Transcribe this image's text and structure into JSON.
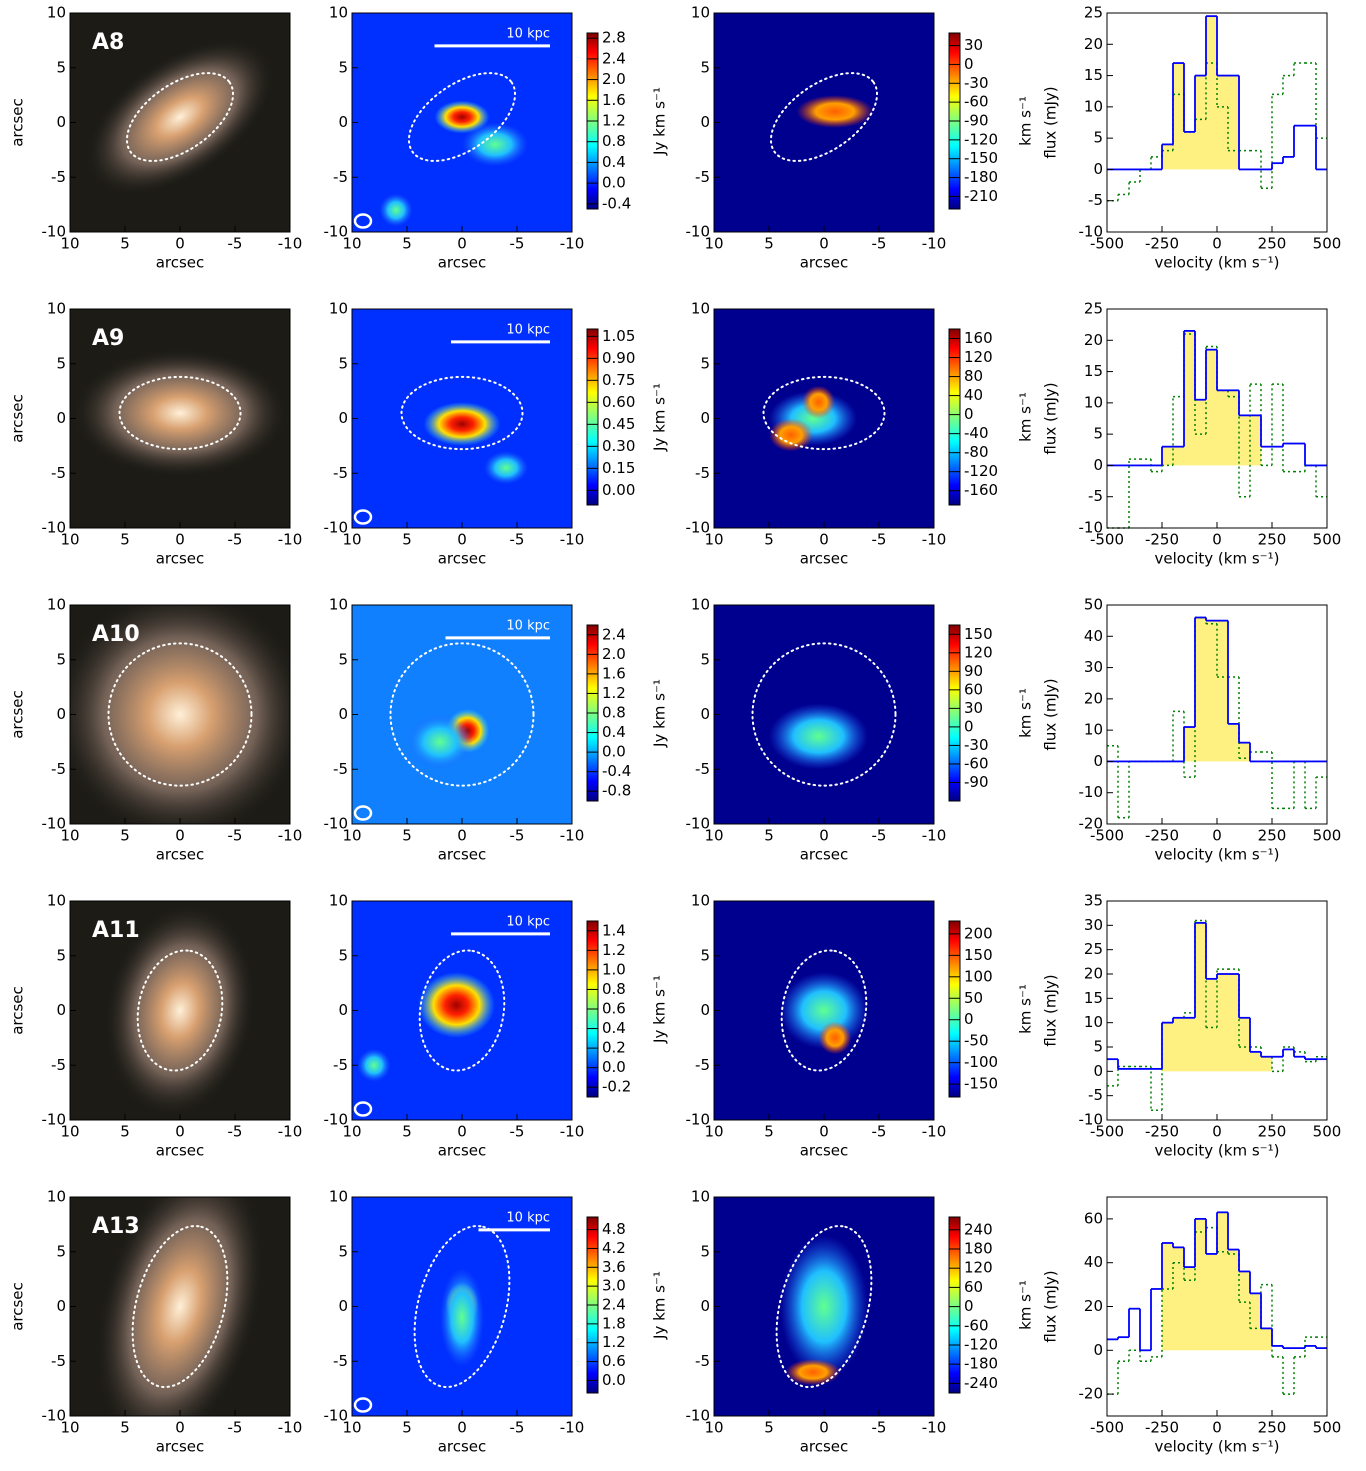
{
  "chart_data": {
    "type": "panel-grid",
    "image_axes": {
      "xlim": [
        10,
        -10
      ],
      "ylim": [
        -10,
        10
      ],
      "ticks": [
        -10,
        -5,
        0,
        5,
        10
      ],
      "label": "arcsec"
    },
    "scale_bar": "10 kpc",
    "mom0_label": "Jy km s⁻¹",
    "mom1_label": "km s⁻¹",
    "spectrum": {
      "xlabel": "velocity (km s⁻¹)",
      "ylabel": "flux (mJy)",
      "xlim": [
        -500,
        500
      ],
      "xticks": [
        -500,
        -250,
        0,
        250,
        500
      ],
      "bins": [
        -500,
        -450,
        -400,
        -350,
        -300,
        -250,
        -200,
        -150,
        -100,
        -50,
        0,
        50,
        100,
        150,
        200,
        250,
        300,
        350,
        400,
        450,
        500
      ]
    },
    "rows": [
      {
        "label": "A8",
        "mom0": {
          "lim": [
            -0.5,
            2.9
          ],
          "ticks": [
            -0.4,
            {
              "value": 0,
              "label": "0.0"
            },
            0.4,
            0.8,
            1.2,
            1.6,
            {
              "value": 2,
              "label": "2.0"
            },
            2.4,
            2.8
          ]
        },
        "mom1": {
          "lim": [
            -230,
            50
          ],
          "ticks": [
            -210,
            -180,
            -150,
            -120,
            -90,
            -60,
            -30,
            0,
            30
          ]
        },
        "spectrum": {
          "ylim": [
            -10,
            25
          ],
          "yticks": [
            -10,
            -5,
            0,
            5,
            10,
            15,
            20,
            25
          ],
          "highlight": [
            -250,
            100
          ],
          "series": [
            {
              "color": "#0000ff",
              "values": [
                0,
                0,
                0,
                0,
                0,
                4,
                17,
                6,
                15,
                24.5,
                15,
                15,
                0,
                0,
                0,
                1,
                2,
                7,
                7,
                0
              ]
            },
            {
              "color": "#008000",
              "values": [
                -5,
                -4,
                -2,
                0,
                2,
                3,
                12,
                6,
                8,
                17,
                10,
                3,
                3,
                3,
                -3,
                12,
                15,
                17,
                17,
                5
              ]
            }
          ]
        }
      },
      {
        "label": "A9",
        "mom0": {
          "lim": [
            -0.1,
            1.1
          ],
          "ticks": [
            {
              "value": 0,
              "label": "0.00"
            },
            0.15,
            {
              "value": 0.3,
              "label": "0.30"
            },
            0.45,
            {
              "value": 0.6,
              "label": "0.60"
            },
            0.75,
            {
              "value": 0.9,
              "label": "0.90"
            },
            1.05
          ]
        },
        "mom1": {
          "lim": [
            -190,
            180
          ],
          "ticks": [
            -160,
            -120,
            -80,
            -40,
            0,
            40,
            80,
            120,
            160
          ]
        },
        "spectrum": {
          "ylim": [
            -10,
            25
          ],
          "yticks": [
            -10,
            -5,
            0,
            5,
            10,
            15,
            20,
            25
          ],
          "highlight": [
            -250,
            200
          ],
          "series": [
            {
              "color": "#0000ff",
              "values": [
                0,
                0,
                0,
                0,
                0,
                3,
                3,
                21.5,
                10.5,
                18.5,
                12,
                12,
                8,
                8,
                3,
                3,
                3.5,
                3.5,
                0,
                0
              ]
            },
            {
              "color": "#008000",
              "values": [
                -10,
                -10,
                1,
                1,
                -1,
                0,
                11,
                21,
                5,
                19,
                12,
                11,
                -5,
                13,
                0,
                13,
                -1,
                -1,
                0,
                -5
              ]
            }
          ]
        }
      },
      {
        "label": "A10",
        "mom0": {
          "lim": [
            -1.0,
            2.6
          ],
          "ticks": [
            -0.8,
            -0.4,
            {
              "value": 0,
              "label": "0.0"
            },
            0.4,
            0.8,
            1.2,
            1.6,
            {
              "value": 2,
              "label": "2.0"
            },
            2.4
          ]
        },
        "mom1": {
          "lim": [
            -120,
            165
          ],
          "ticks": [
            -90,
            -60,
            -30,
            0,
            30,
            60,
            90,
            120,
            150
          ]
        },
        "spectrum": {
          "ylim": [
            -20,
            50
          ],
          "yticks": [
            -20,
            -10,
            0,
            10,
            20,
            30,
            40,
            50
          ],
          "highlight": [
            -150,
            150
          ],
          "series": [
            {
              "color": "#0000ff",
              "values": [
                0,
                0,
                0,
                0,
                0,
                0,
                0,
                11,
                46,
                45,
                45,
                12,
                6,
                0,
                0,
                0,
                0,
                0,
                0,
                0
              ]
            },
            {
              "color": "#008000",
              "values": [
                5,
                -18,
                0,
                0,
                0,
                0,
                16,
                -5,
                46,
                44,
                27,
                27,
                1,
                3,
                3,
                -15,
                -15,
                0,
                -15,
                -5
              ]
            }
          ]
        }
      },
      {
        "label": "A11",
        "mom0": {
          "lim": [
            -0.3,
            1.5
          ],
          "ticks": [
            -0.2,
            {
              "value": 0,
              "label": "0.0"
            },
            0.2,
            0.4,
            0.6,
            0.8,
            {
              "value": 1,
              "label": "1.0"
            },
            1.2,
            1.4
          ]
        },
        "mom1": {
          "lim": [
            -180,
            230
          ],
          "ticks": [
            -150,
            -100,
            -50,
            0,
            50,
            100,
            150,
            200
          ]
        },
        "spectrum": {
          "ylim": [
            -10,
            35
          ],
          "yticks": [
            -10,
            -5,
            0,
            5,
            10,
            15,
            20,
            25,
            30,
            35
          ],
          "highlight": [
            -250,
            250
          ],
          "series": [
            {
              "color": "#0000ff",
              "values": [
                2.5,
                0.5,
                0.5,
                0.5,
                0.5,
                10,
                11,
                11,
                30.5,
                19,
                20,
                20,
                11,
                4,
                3,
                3,
                4.5,
                3,
                2.5,
                2.5
              ]
            },
            {
              "color": "#008000",
              "values": [
                -3,
                1,
                1,
                1,
                -8,
                10,
                11,
                12,
                31,
                9,
                21,
                21,
                5,
                5,
                3,
                0,
                5,
                4,
                2,
                3
              ]
            }
          ]
        }
      },
      {
        "label": "A13",
        "mom0": {
          "lim": [
            -0.4,
            5.2
          ],
          "ticks": [
            {
              "value": 0,
              "label": "0.0"
            },
            0.6,
            1.2,
            1.8,
            2.4,
            {
              "value": 3,
              "label": "3.0"
            },
            3.6,
            4.2,
            4.8
          ]
        },
        "mom1": {
          "lim": [
            -270,
            280
          ],
          "ticks": [
            -240,
            -180,
            -120,
            -60,
            0,
            60,
            120,
            180,
            240
          ]
        },
        "spectrum": {
          "ylim": [
            -30,
            70
          ],
          "yticks": [
            -20,
            0,
            20,
            40,
            60
          ],
          "highlight": [
            -250,
            250
          ],
          "series": [
            {
              "color": "#0000ff",
              "values": [
                5,
                6,
                19,
                0,
                28,
                49,
                47,
                38,
                60,
                44,
                63,
                46,
                36,
                26,
                10,
                2,
                1,
                1,
                2,
                1
              ]
            },
            {
              "color": "#008000",
              "values": [
                -20,
                -5,
                0,
                -5,
                -3,
                28,
                40,
                32,
                54,
                56,
                45,
                44,
                22,
                10,
                30,
                -3,
                -20,
                -3,
                6,
                6
              ]
            }
          ]
        }
      }
    ]
  }
}
